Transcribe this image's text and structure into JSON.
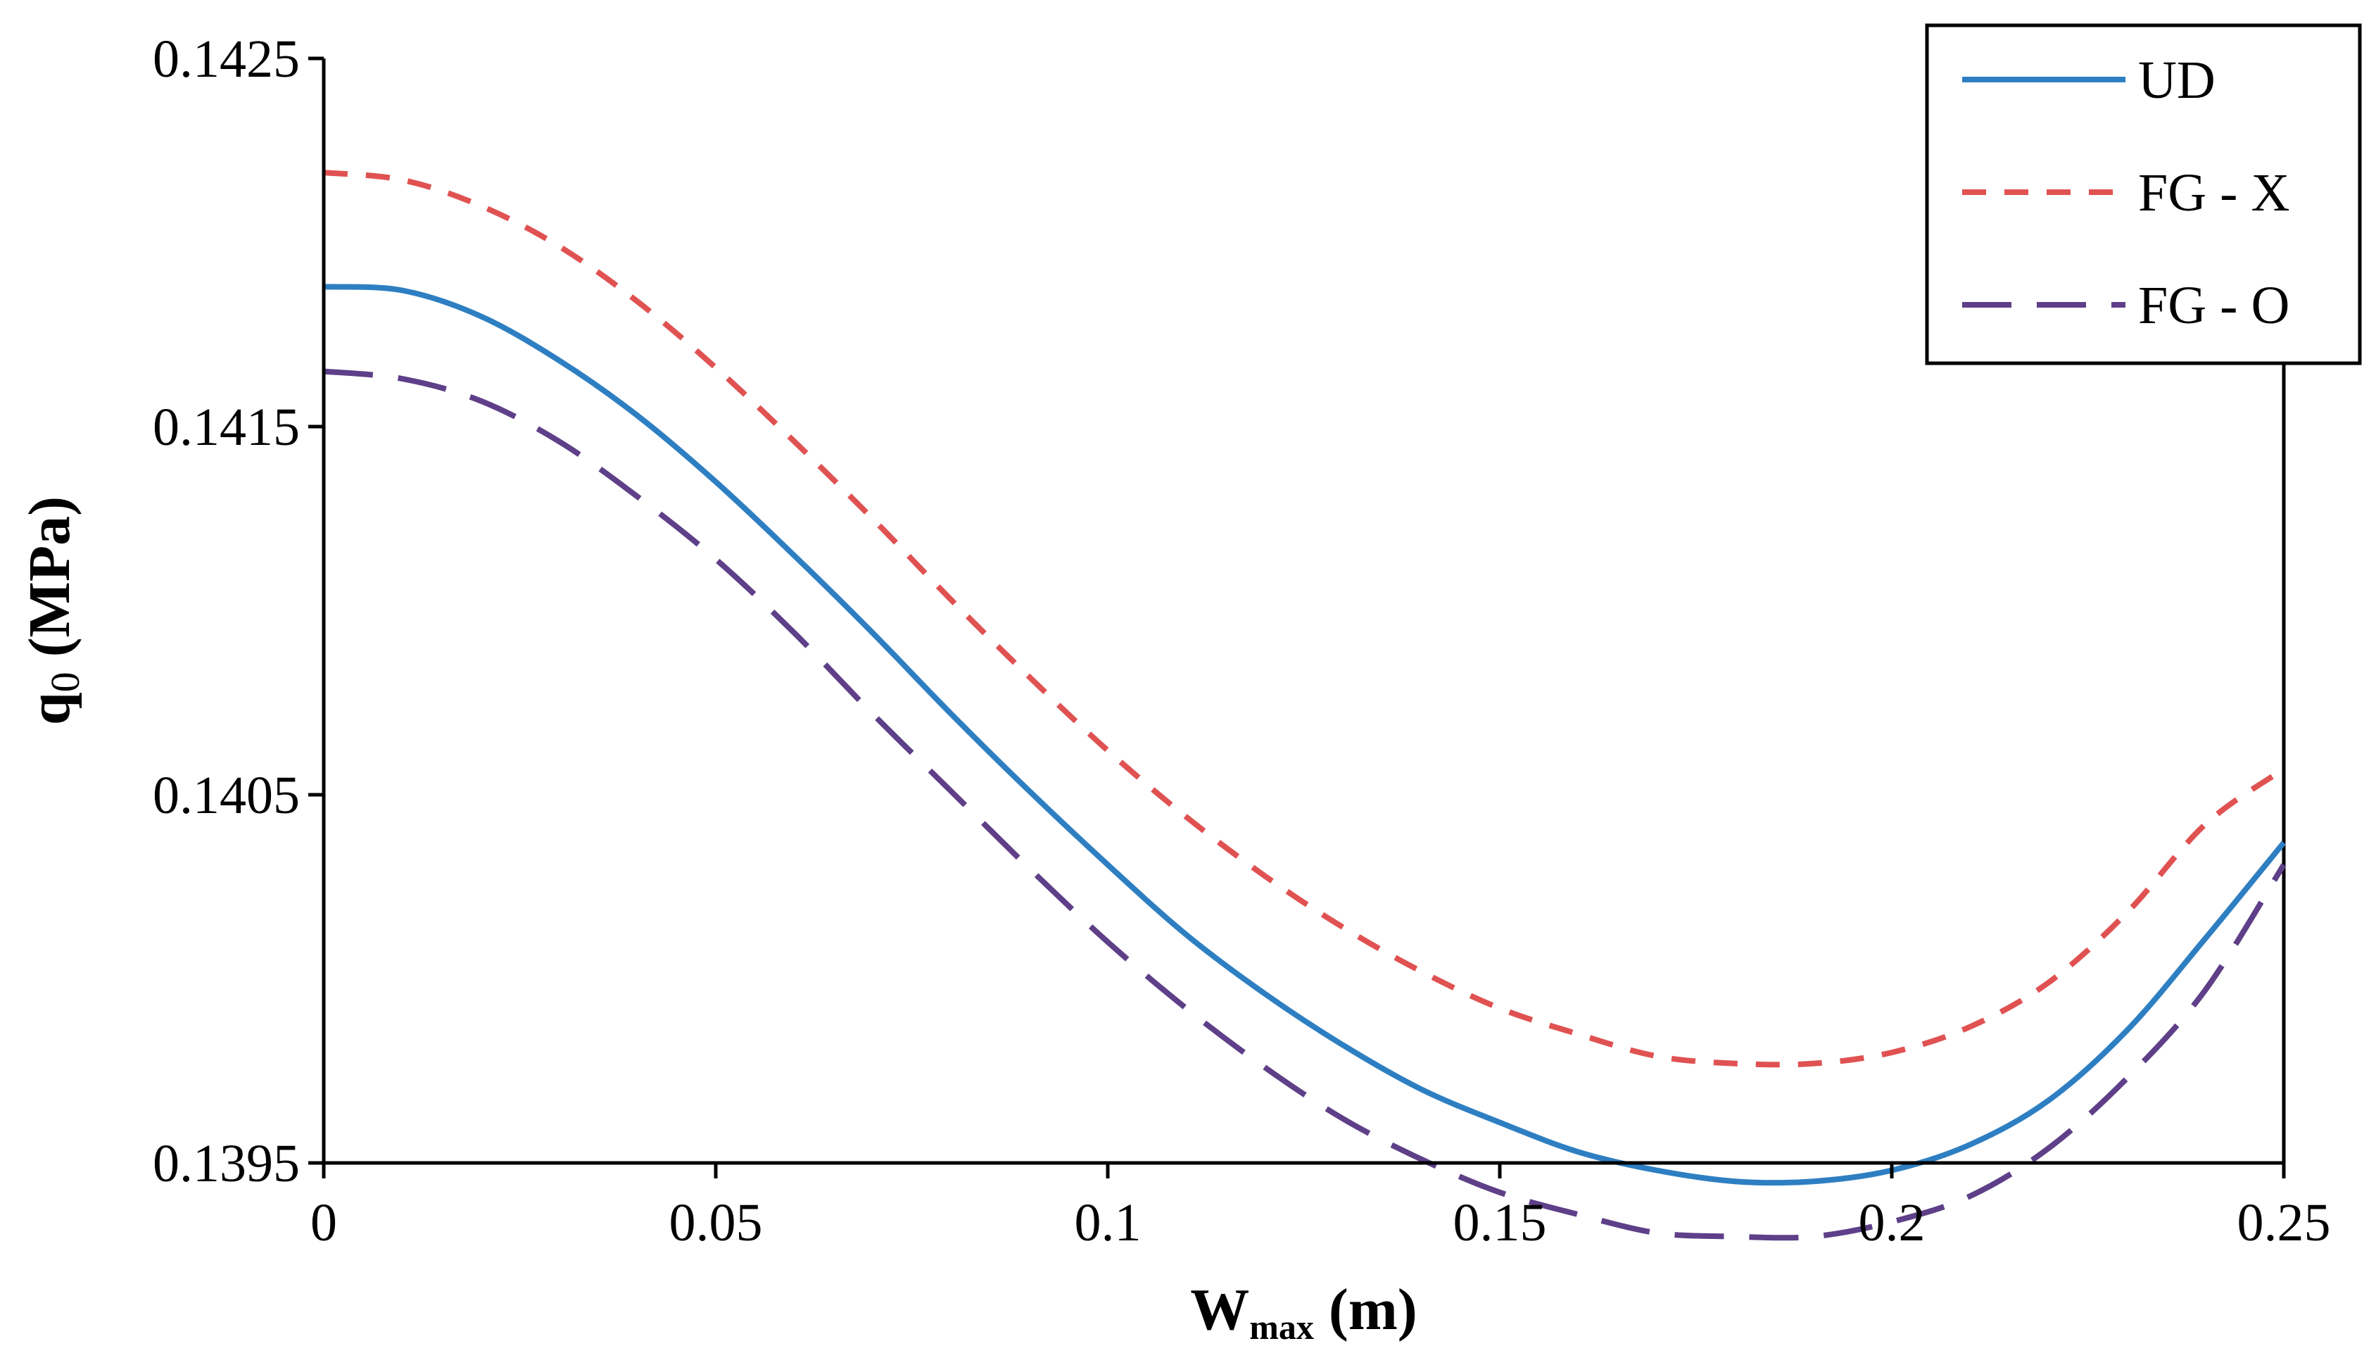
{
  "chart_data": {
    "type": "line",
    "title": "",
    "xlabel": {
      "main": "W",
      "subscript": "max",
      "unit": " (m)"
    },
    "ylabel": {
      "main": "q",
      "subscript": "0",
      "unit": " (MPa)"
    },
    "xlim": [
      0,
      0.25
    ],
    "ylim": [
      0.1395,
      0.1425
    ],
    "x_ticks": [
      0,
      0.05,
      0.1,
      0.15,
      0.2,
      0.25
    ],
    "x_tick_labels": [
      "0",
      "0.05",
      "0.1",
      "0.15",
      "0.2",
      "0.25"
    ],
    "y_ticks": [
      0.1395,
      0.1405,
      0.1415,
      0.1425
    ],
    "y_tick_labels": [
      "0.1395",
      "0.1405",
      "0.1415",
      "0.1425"
    ],
    "grid": false,
    "legend_position": "top-right",
    "x": [
      0,
      0.01,
      0.02,
      0.03,
      0.04,
      0.05,
      0.06,
      0.07,
      0.08,
      0.09,
      0.1,
      0.11,
      0.12,
      0.13,
      0.14,
      0.15,
      0.16,
      0.17,
      0.18,
      0.19,
      0.2,
      0.21,
      0.22,
      0.23,
      0.24,
      0.25
    ],
    "series": [
      {
        "name": "UD",
        "color": "#2e7fc2",
        "dash": "solid",
        "values": [
          0.14188,
          0.14187,
          0.1418,
          0.14168,
          0.14153,
          0.14135,
          0.14115,
          0.14094,
          0.14072,
          0.14051,
          0.14031,
          0.14012,
          0.13996,
          0.13982,
          0.1397,
          0.13961,
          0.13953,
          0.13948,
          0.13945,
          0.13945,
          0.13948,
          0.13955,
          0.13967,
          0.13986,
          0.14011,
          0.14037
        ]
      },
      {
        "name": "FG - X",
        "color": "#e05252",
        "dash": "short-dash",
        "values": [
          0.14219,
          0.14217,
          0.1421,
          0.14199,
          0.14184,
          0.14166,
          0.14146,
          0.14125,
          0.14103,
          0.14082,
          0.14062,
          0.14044,
          0.14028,
          0.14014,
          0.14002,
          0.13992,
          0.13985,
          0.13979,
          0.13977,
          0.13977,
          0.1398,
          0.13987,
          0.13999,
          0.14018,
          0.14042,
          0.14057
        ]
      },
      {
        "name": "FG - O",
        "color": "#5e3f88",
        "dash": "long-dash",
        "values": [
          0.14165,
          0.14163,
          0.14157,
          0.14146,
          0.14131,
          0.14114,
          0.14094,
          0.14072,
          0.14051,
          0.1403,
          0.1401,
          0.13992,
          0.13976,
          0.13962,
          0.13951,
          0.13942,
          0.13936,
          0.13931,
          0.1393,
          0.1393,
          0.13934,
          0.13941,
          0.13954,
          0.13973,
          0.13997,
          0.14031
        ]
      }
    ]
  }
}
